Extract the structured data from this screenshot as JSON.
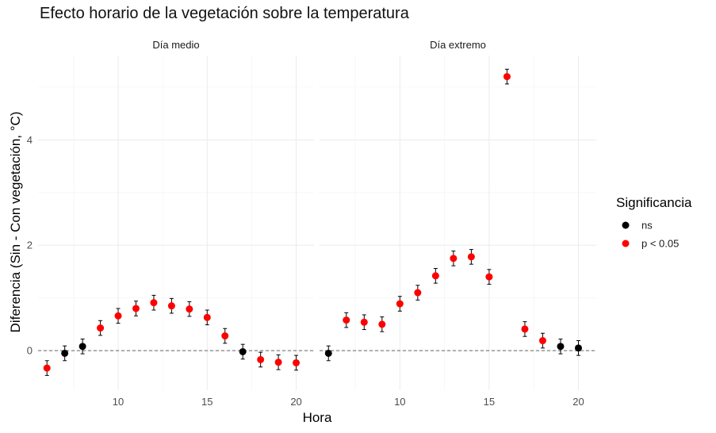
{
  "title": "Efecto horario de la vegetación sobre la temperatura",
  "chart_data": {
    "type": "scatter",
    "title": "Efecto horario de la vegetación sobre la temperatura",
    "xlabel": "Hora",
    "ylabel": "Diferencia (Sin - Con vegetación, °C)",
    "xlim": [
      5.5,
      21
    ],
    "ylim": [
      -0.75,
      5.6
    ],
    "x_ticks": [
      10,
      15,
      20
    ],
    "y_ticks": [
      0,
      2,
      4
    ],
    "reference_line": 0,
    "grid": true,
    "legend": {
      "title": "Significancia",
      "position": "right",
      "entries": [
        {
          "label": "ns",
          "color": "#000000"
        },
        {
          "label": "p < 0.05",
          "color": "#ff0000"
        }
      ]
    },
    "panels": [
      {
        "label": "Día medio",
        "points": [
          {
            "x": 6,
            "y": -0.33,
            "lo": -0.47,
            "hi": -0.19,
            "sig": "p < 0.05"
          },
          {
            "x": 7,
            "y": -0.05,
            "lo": -0.19,
            "hi": 0.09,
            "sig": "ns"
          },
          {
            "x": 8,
            "y": 0.08,
            "lo": -0.06,
            "hi": 0.22,
            "sig": "ns"
          },
          {
            "x": 9,
            "y": 0.43,
            "lo": 0.29,
            "hi": 0.57,
            "sig": "p < 0.05"
          },
          {
            "x": 10,
            "y": 0.66,
            "lo": 0.52,
            "hi": 0.8,
            "sig": "p < 0.05"
          },
          {
            "x": 11,
            "y": 0.8,
            "lo": 0.66,
            "hi": 0.94,
            "sig": "p < 0.05"
          },
          {
            "x": 12,
            "y": 0.91,
            "lo": 0.77,
            "hi": 1.05,
            "sig": "p < 0.05"
          },
          {
            "x": 13,
            "y": 0.85,
            "lo": 0.71,
            "hi": 0.99,
            "sig": "p < 0.05"
          },
          {
            "x": 14,
            "y": 0.79,
            "lo": 0.65,
            "hi": 0.93,
            "sig": "p < 0.05"
          },
          {
            "x": 15,
            "y": 0.63,
            "lo": 0.49,
            "hi": 0.77,
            "sig": "p < 0.05"
          },
          {
            "x": 16,
            "y": 0.28,
            "lo": 0.14,
            "hi": 0.42,
            "sig": "p < 0.05"
          },
          {
            "x": 17,
            "y": -0.02,
            "lo": -0.16,
            "hi": 0.12,
            "sig": "ns"
          },
          {
            "x": 18,
            "y": -0.17,
            "lo": -0.31,
            "hi": -0.03,
            "sig": "p < 0.05"
          },
          {
            "x": 19,
            "y": -0.22,
            "lo": -0.36,
            "hi": -0.08,
            "sig": "p < 0.05"
          },
          {
            "x": 20,
            "y": -0.23,
            "lo": -0.37,
            "hi": -0.09,
            "sig": "p < 0.05"
          }
        ]
      },
      {
        "label": "Día extremo",
        "points": [
          {
            "x": 6,
            "y": -0.05,
            "lo": -0.19,
            "hi": 0.09,
            "sig": "ns"
          },
          {
            "x": 7,
            "y": 0.58,
            "lo": 0.44,
            "hi": 0.72,
            "sig": "p < 0.05"
          },
          {
            "x": 8,
            "y": 0.54,
            "lo": 0.4,
            "hi": 0.68,
            "sig": "p < 0.05"
          },
          {
            "x": 9,
            "y": 0.5,
            "lo": 0.36,
            "hi": 0.64,
            "sig": "p < 0.05"
          },
          {
            "x": 10,
            "y": 0.89,
            "lo": 0.75,
            "hi": 1.03,
            "sig": "p < 0.05"
          },
          {
            "x": 11,
            "y": 1.1,
            "lo": 0.96,
            "hi": 1.24,
            "sig": "p < 0.05"
          },
          {
            "x": 12,
            "y": 1.42,
            "lo": 1.28,
            "hi": 1.56,
            "sig": "p < 0.05"
          },
          {
            "x": 13,
            "y": 1.75,
            "lo": 1.61,
            "hi": 1.89,
            "sig": "p < 0.05"
          },
          {
            "x": 14,
            "y": 1.78,
            "lo": 1.64,
            "hi": 1.92,
            "sig": "p < 0.05"
          },
          {
            "x": 15,
            "y": 1.4,
            "lo": 1.26,
            "hi": 1.54,
            "sig": "p < 0.05"
          },
          {
            "x": 16,
            "y": 5.2,
            "lo": 5.06,
            "hi": 5.34,
            "sig": "p < 0.05"
          },
          {
            "x": 17,
            "y": 0.41,
            "lo": 0.27,
            "hi": 0.55,
            "sig": "p < 0.05"
          },
          {
            "x": 18,
            "y": 0.19,
            "lo": 0.05,
            "hi": 0.33,
            "sig": "p < 0.05"
          },
          {
            "x": 19,
            "y": 0.08,
            "lo": -0.06,
            "hi": 0.22,
            "sig": "ns"
          },
          {
            "x": 20,
            "y": 0.05,
            "lo": -0.09,
            "hi": 0.19,
            "sig": "ns"
          }
        ]
      }
    ]
  }
}
